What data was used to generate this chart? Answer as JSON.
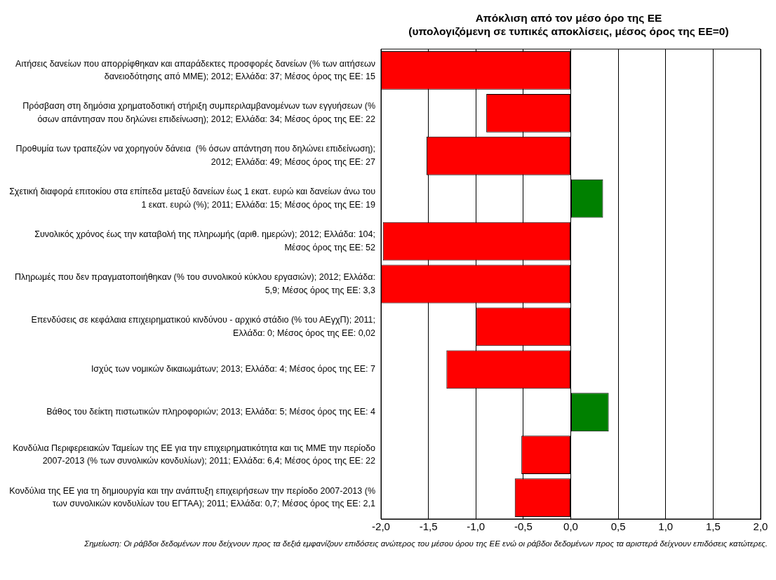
{
  "chart_data": {
    "type": "bar",
    "orientation": "horizontal",
    "title": "Απόκλιση από τον μέσο όρο της ΕΕ\n(υπολογιζόμενη σε τυπικές αποκλίσεις, μέσος όρος της ΕΕ=0)",
    "categories": [
      "Αιτήσεις δανείων που απορρίφθηκαν και απαράδεκτες προσφορές δανείων (% των αιτήσεων δανειοδότησης από ΜΜΕ); 2012; Ελλάδα: 37; Μέσος όρος της ΕΕ: 15",
      "Πρόσβαση στη δημόσια χρηματοδοτική στήριξη συμπεριλαμβανομένων των εγγυήσεων (% όσων απάντησαν που δηλώνει επιδείνωση); 2012; Ελλάδα: 34; Μέσος όρος της ΕΕ: 22",
      "Προθυμία των τραπεζών να χορηγούν δάνεια  (% όσων απάντηση που δηλώνει επιδείνωση); 2012; Ελλάδα: 49; Μέσος όρος της ΕΕ: 27",
      "Σχετική διαφορά επιτοκίου στα επίπεδα μεταξύ δανείων έως 1 εκατ. ευρώ και δανείων άνω του 1 εκατ. ευρώ (%); 2011; Ελλάδα: 15; Μέσος όρος της ΕΕ: 19",
      "Συνολικός χρόνος έως την καταβολή της πληρωμής (αριθ. ημερών); 2012; Ελλάδα: 104; Μέσος όρος της ΕΕ: 52",
      "Πληρωμές που δεν πραγματοποιήθηκαν (% του συνολικού κύκλου εργασιών); 2012; Ελλάδα: 5,9; Μέσος όρος της ΕΕ: 3,3",
      "Επενδύσεις σε κεφάλαια επιχειρηματικού κινδύνου - αρχικό στάδιο (% του ΑΕγχΠ); 2011; Ελλάδα: 0; Μέσος όρος της ΕΕ: 0,02",
      "Ισχύς των νομικών δικαιωμάτων; 2013; Ελλάδα: 4; Μέσος όρος της ΕΕ: 7",
      "Βάθος του δείκτη πιστωτικών πληροφοριών; 2013; Ελλάδα: 5; Μέσος όρος της ΕΕ: 4",
      "Κονδύλια Περιφερειακών Ταμείων της ΕΕ για την επιχειρηματικότητα και τις ΜΜΕ την περίοδο 2007-2013 (% των συνολικών κονδυλίων); 2011; Ελλάδα: 6,4; Μέσος όρος της ΕΕ: 22",
      "Κονδύλια της ΕΕ για τη δημιουργία και την ανάπτυξη επιχειρήσεων την περίοδο 2007-2013 (% των συνολικών κονδυλίων του ΕΓΤΑΑ); 2011; Ελλάδα: 0,7; Μέσος όρος της ΕΕ: 2,1"
    ],
    "values": [
      -2.0,
      -0.89,
      -1.52,
      0.34,
      -1.98,
      -2.0,
      -1.0,
      -1.31,
      0.4,
      -0.52,
      -0.59
    ],
    "colors": [
      "#ff0000",
      "#ff0000",
      "#ff0000",
      "#008000",
      "#ff0000",
      "#ff0000",
      "#ff0000",
      "#ff0000",
      "#008000",
      "#ff0000",
      "#ff0000"
    ],
    "xlim": [
      -2.0,
      2.0
    ],
    "xticks": [
      {
        "value": -2,
        "label": "-2,0"
      },
      {
        "value": -1.5,
        "label": "-1,5"
      },
      {
        "value": -1,
        "label": "-1,0"
      },
      {
        "value": -0.5,
        "label": "-0,5"
      },
      {
        "value": 0,
        "label": "0,0"
      },
      {
        "value": 0.5,
        "label": "0,5"
      },
      {
        "value": 1,
        "label": "1,0"
      },
      {
        "value": 1.5,
        "label": "1,5"
      },
      {
        "value": 2,
        "label": "2,0"
      }
    ],
    "grid": "x",
    "annotations": [
      "Σημείωση: Οι ράβδοι δεδομένων  που δείχνουν προς τα δεξιά εμφανίζουν επιδόσεις ανώτερος του μέσου όρου της ΕΕ ενώ οι ράβδοι δεδομένων  προς τα αριστερά δείχνουν επιδόσεις κατώτερες."
    ]
  }
}
